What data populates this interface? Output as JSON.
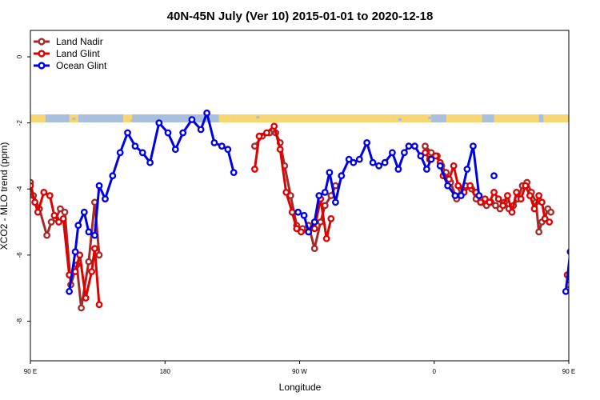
{
  "chart_data": {
    "type": "line",
    "title": "40N-45N July (Ver 10)   2015-01-01 to 2020-12-18",
    "xlabel": "Longitude",
    "ylabel": "XCO2 - MLO trend (ppm)",
    "xlim": [
      90,
      450
    ],
    "ylim": [
      -9.2,
      0.8
    ],
    "x_ticks": [
      {
        "value": 90,
        "label": "90 E"
      },
      {
        "value": 180,
        "label": "180"
      },
      {
        "value": 270,
        "label": "90 W"
      },
      {
        "value": 360,
        "label": "0"
      },
      {
        "value": 450,
        "label": "90 E"
      },
      {
        "value": 540,
        "label": "180"
      }
    ],
    "y_ticks": [
      {
        "value": 0,
        "label": "0"
      },
      {
        "value": -2,
        "label": "-2"
      },
      {
        "value": -4,
        "label": "-4"
      },
      {
        "value": -6,
        "label": "-6"
      },
      {
        "value": -8,
        "label": "-8"
      }
    ],
    "legend_position": "top-left",
    "land_ocean_strip": {
      "land_color": "#F7D774",
      "ocean_color": "#A9BFDE"
    },
    "series": [
      {
        "name": "Land Nadir",
        "color": "#A52A2A",
        "segments": [
          [
            [
              90,
              -3.8
            ],
            [
              92,
              -4.2
            ],
            [
              96,
              -4.6
            ],
            [
              101,
              -5.4
            ],
            [
              104,
              -5.0
            ],
            [
              107,
              -4.9
            ],
            [
              110,
              -4.6
            ],
            [
              113,
              -4.7
            ],
            [
              117,
              -6.9
            ],
            [
              121,
              -6.3
            ],
            [
              124,
              -7.6
            ],
            [
              129,
              -6.2
            ],
            [
              133,
              -4.4
            ],
            [
              136,
              -6.0
            ]
          ],
          [
            [
              240,
              -2.7
            ],
            [
              245,
              -2.4
            ],
            [
              250,
              -2.3
            ],
            [
              254,
              -2.3
            ],
            [
              257,
              -2.6
            ],
            [
              260,
              -3.3
            ],
            [
              264,
              -4.2
            ],
            [
              268,
              -5.1
            ],
            [
              272,
              -5.2
            ],
            [
              276,
              -5.1
            ],
            [
              280,
              -5.8
            ],
            [
              284,
              -5.0
            ],
            [
              287,
              -4.5
            ],
            [
              291,
              -4.2
            ],
            [
              294,
              -3.9
            ]
          ],
          [
            [
              354,
              -2.7
            ],
            [
              358,
              -2.9
            ],
            [
              362,
              -3.0
            ],
            [
              365,
              -3.3
            ],
            [
              368,
              -3.5
            ],
            [
              371,
              -3.8
            ],
            [
              375,
              -4.3
            ],
            [
              378,
              -4.0
            ],
            [
              381,
              -3.9
            ],
            [
              385,
              -4.0
            ],
            [
              388,
              -4.3
            ],
            [
              392,
              -4.4
            ],
            [
              395,
              -4.5
            ],
            [
              398,
              -4.4
            ],
            [
              401,
              -4.5
            ],
            [
              404,
              -4.6
            ],
            [
              407,
              -4.4
            ],
            [
              410,
              -4.6
            ],
            [
              413,
              -4.5
            ],
            [
              416,
              -4.3
            ],
            [
              419,
              -3.9
            ],
            [
              422,
              -3.8
            ],
            [
              425,
              -4.1
            ],
            [
              428,
              -4.4
            ],
            [
              430,
              -5.3
            ],
            [
              432,
              -5.0
            ],
            [
              434,
              -4.9
            ],
            [
              436,
              -4.6
            ],
            [
              438,
              -4.7
            ]
          ],
          [
            [
              450,
              -6.9
            ],
            [
              454,
              -6.3
            ],
            [
              458,
              -7.6
            ],
            [
              463,
              -6.2
            ],
            [
              467,
              -4.4
            ],
            [
              470,
              -6.0
            ]
          ]
        ]
      },
      {
        "name": "Land Glint",
        "color": "#E10000",
        "segments": [
          [
            [
              90,
              -3.9
            ],
            [
              93,
              -4.4
            ],
            [
              95,
              -4.7
            ],
            [
              99,
              -4.1
            ],
            [
              103,
              -4.2
            ],
            [
              106,
              -4.8
            ],
            [
              109,
              -5.0
            ],
            [
              112,
              -4.9
            ],
            [
              116,
              -6.6
            ],
            [
              120,
              -6.5
            ],
            [
              123,
              -6.0
            ],
            [
              127,
              -7.3
            ],
            [
              131,
              -6.5
            ],
            [
              133,
              -5.8
            ],
            [
              136,
              -7.5
            ]
          ],
          [
            [
              240,
              -3.4
            ],
            [
              243,
              -2.4
            ],
            [
              248,
              -2.3
            ],
            [
              253,
              -2.1
            ],
            [
              257,
              -2.8
            ],
            [
              261,
              -4.1
            ],
            [
              265,
              -4.7
            ],
            [
              268,
              -5.2
            ],
            [
              271,
              -5.3
            ],
            [
              276,
              -5.3
            ],
            [
              280,
              -5.2
            ],
            [
              284,
              -4.3
            ],
            [
              288,
              -5.5
            ],
            [
              291,
              -4.9
            ]
          ],
          [
            [
              354,
              -2.9
            ],
            [
              357,
              -3.1
            ],
            [
              361,
              -3.0
            ],
            [
              364,
              -3.2
            ],
            [
              366,
              -3.6
            ],
            [
              370,
              -3.7
            ],
            [
              373,
              -3.3
            ],
            [
              376,
              -3.9
            ],
            [
              380,
              -4.1
            ],
            [
              384,
              -3.9
            ],
            [
              388,
              -4.1
            ],
            [
              391,
              -4.4
            ],
            [
              394,
              -4.3
            ],
            [
              397,
              -4.4
            ],
            [
              400,
              -4.1
            ],
            [
              403,
              -4.3
            ],
            [
              406,
              -4.5
            ],
            [
              409,
              -4.2
            ],
            [
              412,
              -4.7
            ],
            [
              415,
              -4.1
            ],
            [
              418,
              -4.3
            ],
            [
              421,
              -3.9
            ],
            [
              424,
              -4.2
            ],
            [
              427,
              -4.6
            ],
            [
              430,
              -4.2
            ],
            [
              432,
              -4.4
            ],
            [
              434,
              -4.9
            ],
            [
              437,
              -5.0
            ]
          ],
          [
            [
              449,
              -6.6
            ],
            [
              453,
              -6.6
            ],
            [
              456,
              -6.0
            ],
            [
              461,
              -7.3
            ],
            [
              466,
              -5.8
            ],
            [
              469,
              -7.5
            ]
          ]
        ]
      },
      {
        "name": "Ocean Glint",
        "color": "#0000E6",
        "segments": [
          [
            [
              116,
              -7.1
            ],
            [
              120,
              -5.9
            ],
            [
              122,
              -5.1
            ],
            [
              126,
              -4.7
            ],
            [
              129,
              -5.3
            ],
            [
              133,
              -5.4
            ],
            [
              136,
              -3.9
            ],
            [
              140,
              -4.3
            ],
            [
              145,
              -3.6
            ],
            [
              150,
              -2.9
            ],
            [
              155,
              -2.3
            ],
            [
              160,
              -2.7
            ],
            [
              165,
              -2.9
            ],
            [
              170,
              -3.2
            ],
            [
              176,
              -2.0
            ],
            [
              182,
              -2.3
            ],
            [
              187,
              -2.8
            ],
            [
              192,
              -2.3
            ],
            [
              198,
              -1.9
            ],
            [
              204,
              -2.2
            ],
            [
              208,
              -1.7
            ],
            [
              213,
              -2.6
            ],
            [
              218,
              -2.7
            ],
            [
              222,
              -2.8
            ],
            [
              226,
              -3.5
            ]
          ],
          [
            [
              269,
              -4.7
            ],
            [
              273,
              -4.8
            ],
            [
              276,
              -5.3
            ],
            [
              280,
              -5.0
            ],
            [
              283,
              -4.2
            ],
            [
              287,
              -4.1
            ],
            [
              290,
              -3.5
            ],
            [
              294,
              -4.4
            ],
            [
              298,
              -3.6
            ],
            [
              303,
              -3.1
            ],
            [
              306,
              -3.2
            ],
            [
              310,
              -3.1
            ],
            [
              315,
              -2.6
            ],
            [
              319,
              -3.2
            ],
            [
              323,
              -3.3
            ],
            [
              327,
              -3.2
            ],
            [
              332,
              -2.9
            ],
            [
              336,
              -3.4
            ],
            [
              340,
              -2.9
            ],
            [
              343,
              -2.7
            ],
            [
              347,
              -2.7
            ],
            [
              351,
              -3.0
            ],
            [
              355,
              -3.4
            ],
            [
              358,
              -3.1
            ]
          ],
          [
            [
              364,
              -3.3
            ],
            [
              369,
              -3.9
            ],
            [
              374,
              -4.2
            ],
            [
              378,
              -4.2
            ],
            [
              382,
              -3.4
            ],
            [
              386,
              -2.7
            ],
            [
              390,
              -4.2
            ]
          ],
          [
            [
              400,
              -3.6
            ]
          ],
          [
            [
              448,
              -7.1
            ],
            [
              451,
              -5.9
            ],
            [
              455,
              -5.1
            ],
            [
              458,
              -4.7
            ],
            [
              461,
              -5.3
            ],
            [
              465,
              -5.4
            ],
            [
              469,
              -3.9
            ],
            [
              473,
              -4.3
            ],
            [
              478,
              -3.6
            ],
            [
              483,
              -2.9
            ],
            [
              488,
              -2.3
            ],
            [
              493,
              -2.7
            ],
            [
              497,
              -2.9
            ]
          ]
        ]
      }
    ]
  }
}
